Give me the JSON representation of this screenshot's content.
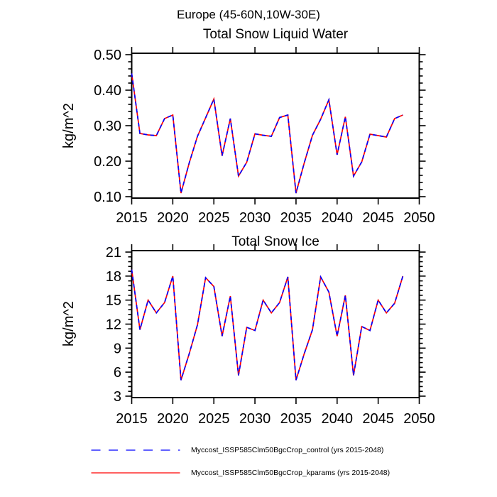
{
  "main_title": "Europe (45-60N,10W-30E)",
  "chart_data": [
    {
      "type": "line",
      "title": "Total Snow Liquid Water",
      "ylabel": "kg/m^2",
      "xlim": [
        2015,
        2050
      ],
      "ylim": [
        0.096,
        0.504
      ],
      "grid": false,
      "xticks": [
        2015,
        2020,
        2025,
        2030,
        2035,
        2040,
        2045,
        2050
      ],
      "xtick_labels": [
        "2015",
        "2020",
        "2025",
        "2030",
        "2035",
        "2040",
        "2045",
        "2050"
      ],
      "ytick_values": [
        0.1,
        0.2,
        0.3,
        0.4,
        0.5
      ],
      "ytick_labels": [
        "0.10",
        "0.20",
        "0.30",
        "0.40",
        "0.50"
      ],
      "y_minor_per_major": 5,
      "x": [
        2015,
        2016,
        2017,
        2018,
        2019,
        2020,
        2021,
        2022,
        2023,
        2024,
        2025,
        2026,
        2027,
        2028,
        2029,
        2030,
        2031,
        2032,
        2033,
        2034,
        2035,
        2036,
        2037,
        2038,
        2039,
        2040,
        2041,
        2042,
        2043,
        2044,
        2045,
        2046,
        2047,
        2048
      ],
      "series": [
        {
          "name": "Myccost_ISSP585Clm50BgcCrop_kparams",
          "color": "#ff0000",
          "line_style": "solid",
          "values": [
            0.447,
            0.278,
            0.274,
            0.272,
            0.32,
            0.33,
            0.11,
            0.195,
            0.27,
            0.322,
            0.375,
            0.215,
            0.32,
            0.158,
            0.197,
            0.277,
            0.273,
            0.27,
            0.323,
            0.33,
            0.11,
            0.195,
            0.273,
            0.318,
            0.373,
            0.218,
            0.325,
            0.158,
            0.198,
            0.276,
            0.272,
            0.268,
            0.32,
            0.33
          ]
        },
        {
          "name": "Myccost_ISSP585Clm50BgcCrop_control",
          "color": "#0000ff",
          "line_style": "dashed",
          "values": [
            0.447,
            0.278,
            0.274,
            0.272,
            0.32,
            0.33,
            0.11,
            0.195,
            0.27,
            0.322,
            0.375,
            0.215,
            0.32,
            0.158,
            0.197,
            0.277,
            0.273,
            0.27,
            0.323,
            0.33,
            0.11,
            0.195,
            0.273,
            0.318,
            0.373,
            0.218,
            0.325,
            0.158,
            0.198,
            0.276,
            0.272,
            0.268,
            0.32,
            0.33
          ]
        }
      ]
    },
    {
      "type": "line",
      "title": "Total Snow Ice",
      "ylabel": "kg/m^2",
      "xlim": [
        2015,
        2050
      ],
      "ylim": [
        2.82,
        21.18
      ],
      "grid": false,
      "xticks": [
        2015,
        2020,
        2025,
        2030,
        2035,
        2040,
        2045,
        2050
      ],
      "xtick_labels": [
        "2015",
        "2020",
        "2025",
        "2030",
        "2035",
        "2040",
        "2045",
        "2050"
      ],
      "ytick_values": [
        3,
        6,
        9,
        12,
        15,
        18,
        21
      ],
      "ytick_labels": [
        "3",
        "6",
        "9",
        "12",
        "15",
        "18",
        "21"
      ],
      "y_minor_per_major": 5,
      "x": [
        2015,
        2016,
        2017,
        2018,
        2019,
        2020,
        2021,
        2022,
        2023,
        2024,
        2025,
        2026,
        2027,
        2028,
        2029,
        2030,
        2031,
        2032,
        2033,
        2034,
        2035,
        2036,
        2037,
        2038,
        2039,
        2040,
        2041,
        2042,
        2043,
        2044,
        2045,
        2046,
        2047,
        2048
      ],
      "series": [
        {
          "name": "Myccost_ISSP585Clm50BgcCrop_kparams",
          "color": "#ff0000",
          "line_style": "solid",
          "values": [
            18.8,
            11.3,
            15.0,
            13.4,
            14.7,
            18.0,
            5.0,
            8.3,
            11.9,
            17.8,
            16.7,
            10.5,
            15.5,
            5.6,
            11.6,
            11.2,
            15.0,
            13.4,
            14.7,
            17.9,
            5.0,
            8.3,
            11.3,
            17.9,
            16.0,
            10.5,
            15.6,
            5.6,
            11.7,
            11.2,
            15.0,
            13.4,
            14.6,
            18.0
          ]
        },
        {
          "name": "Myccost_ISSP585Clm50BgcCrop_control",
          "color": "#0000ff",
          "line_style": "dashed",
          "values": [
            18.8,
            11.3,
            15.0,
            13.4,
            14.7,
            18.0,
            5.0,
            8.3,
            11.9,
            17.8,
            16.7,
            10.5,
            15.5,
            5.6,
            11.6,
            11.2,
            15.0,
            13.4,
            14.7,
            17.9,
            5.0,
            8.3,
            11.3,
            17.9,
            16.0,
            10.5,
            15.6,
            5.6,
            11.7,
            11.2,
            15.0,
            13.4,
            14.6,
            18.0
          ]
        }
      ]
    }
  ],
  "legend": {
    "entries": [
      {
        "label": "Myccost_ISSP585Clm50BgcCrop_control (yrs 2015-2048)",
        "color": "#0000ff",
        "line_style": "dashed"
      },
      {
        "label": "Myccost_ISSP585Clm50BgcCrop_kparams (yrs 2015-2048)",
        "color": "#ff0000",
        "line_style": "solid"
      }
    ]
  }
}
